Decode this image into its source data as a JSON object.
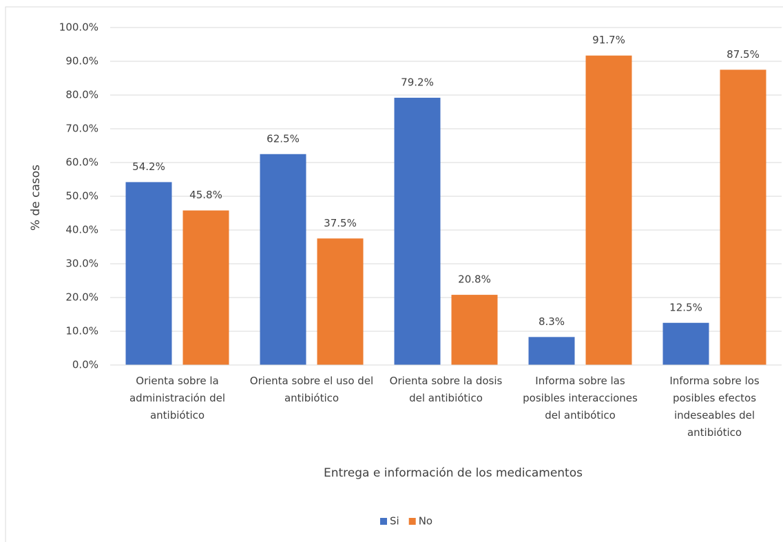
{
  "chart_data": {
    "type": "bar",
    "categories": [
      "Orienta sobre la administración del antibiótico",
      "Orienta sobre el uso del antibiótico",
      "Orienta sobre la dosis del antibiótico",
      "Informa sobre las posibles interacciones del antibótico",
      "Informa sobre los posibles efectos indeseables del antibiótico"
    ],
    "series": [
      {
        "name": "Si",
        "color": "#4472c4",
        "values": [
          54.2,
          62.5,
          79.2,
          8.3,
          12.5
        ],
        "value_labels": [
          "54.2%",
          "62.5%",
          "79.2%",
          "8.3%",
          "12.5%"
        ]
      },
      {
        "name": "No",
        "color": "#ed7d31",
        "values": [
          45.8,
          37.5,
          20.8,
          91.7,
          87.5
        ],
        "value_labels": [
          "45.8%",
          "37.5%",
          "20.8%",
          "91.7%",
          "87.5%"
        ]
      }
    ],
    "x_label": "Entrega e información de los medicamentos",
    "y_label": "% de casos",
    "ylim": [
      0,
      100
    ],
    "yticks": [
      {
        "value": 0,
        "label": "0.0%"
      },
      {
        "value": 10,
        "label": "10.0%"
      },
      {
        "value": 20,
        "label": "20.0%"
      },
      {
        "value": 30,
        "label": "30.0%"
      },
      {
        "value": 40,
        "label": "40.0%"
      },
      {
        "value": 50,
        "label": "50.0%"
      },
      {
        "value": 60,
        "label": "60.0%"
      },
      {
        "value": 70,
        "label": "70.0%"
      },
      {
        "value": 80,
        "label": "80.0%"
      },
      {
        "value": 90,
        "label": "90.0%"
      },
      {
        "value": 100,
        "label": "100.0%"
      }
    ],
    "grid": true,
    "legend": "bottom"
  }
}
